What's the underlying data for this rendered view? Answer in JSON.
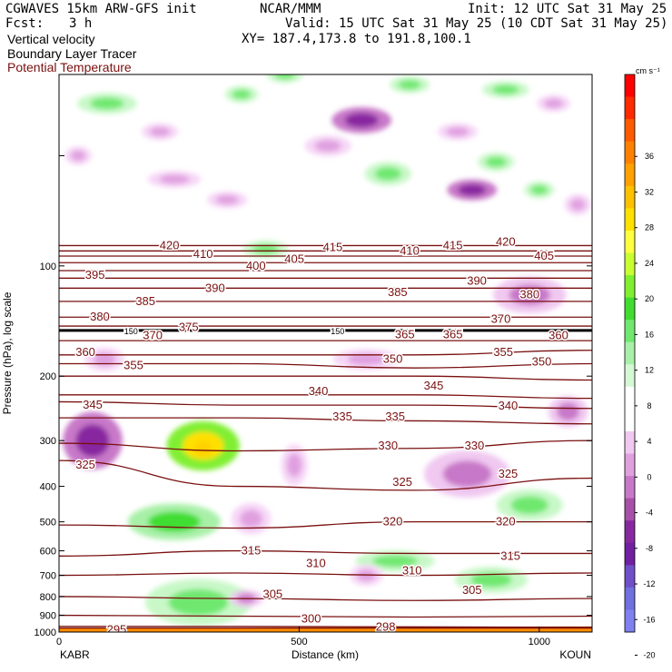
{
  "header": {
    "title_left": "CGWAVES 15km ARW-GFS init",
    "org": "NCAR/MMM",
    "init": "Init: 12 UTC Sat 31 May 25",
    "fcst_label": "Fcst:",
    "fcst_value": "3 h",
    "valid": "Valid: 15 UTC Sat 31 May 25 (10 CDT Sat 31 May 25)",
    "field1": "Vertical velocity",
    "field2": "Boundary Layer Tracer",
    "field3": "Potential Temperature",
    "xy": "XY= 187.4,173.8 to 191.8,100.1"
  },
  "colors": {
    "theta_contour": "#7a1010",
    "tropopause": "#000000",
    "field3_text": "#7a1010",
    "boundary_layer": "#ff8c00"
  },
  "chart_data": {
    "type": "heatmap",
    "xlabel": "Distance (km)",
    "ylabel": "Pressure (hPa), log scale",
    "x_ticks": [
      0,
      500,
      1000
    ],
    "x_range": [
      0,
      1110
    ],
    "x_endpoints": {
      "left": "KABR",
      "right": "KOUN"
    },
    "y_scale": "log",
    "y_range": [
      1000,
      30
    ],
    "y_ticks": [
      100,
      200,
      300,
      400,
      500,
      600,
      700,
      800,
      900,
      1000
    ],
    "colorbar": {
      "units": "cm s⁻¹",
      "ticks": [
        36,
        32,
        28,
        24,
        20,
        16,
        12,
        8,
        4,
        0,
        -4,
        -8,
        -12,
        -16,
        -20
      ],
      "colors": [
        "#ff0000",
        "#ff2a00",
        "#ff5a00",
        "#ff8000",
        "#ffa000",
        "#ffc000",
        "#ffe000",
        "#ffff40",
        "#c8ff30",
        "#80ef30",
        "#40dd30",
        "#70e870",
        "#a8f0a8",
        "#d4f8d4",
        "#ffffff",
        "#ffffff",
        "#f0c8f0",
        "#e0a0e0",
        "#c878c8",
        "#a850a8",
        "#8828a0",
        "#7020a0",
        "#7050c8",
        "#7070e0",
        "#8080f0"
      ]
    },
    "theta_contours": [
      {
        "value": 295,
        "p": [
          975,
          975,
          975,
          975
        ]
      },
      {
        "value": 298,
        "p": [
          965,
          965,
          968,
          970
        ]
      },
      {
        "value": 300,
        "p": [
          900,
          905,
          910,
          905
        ]
      },
      {
        "value": 305,
        "p": [
          800,
          810,
          820,
          810
        ]
      },
      {
        "value": 310,
        "p": [
          700,
          690,
          700,
          690
        ]
      },
      {
        "value": 315,
        "p": [
          620,
          600,
          610,
          610
        ]
      },
      {
        "value": 320,
        "p": [
          510,
          520,
          500,
          500
        ]
      },
      {
        "value": 325,
        "p": [
          340,
          400,
          410,
          380
        ]
      },
      {
        "value": 330,
        "p": [
          305,
          320,
          315,
          300
        ]
      },
      {
        "value": 335,
        "p": [
          260,
          260,
          265,
          270
        ]
      },
      {
        "value": 340,
        "p": [
          235,
          240,
          240,
          245
        ]
      },
      {
        "value": 345,
        "p": [
          225,
          225,
          225,
          230
        ]
      },
      {
        "value": 350,
        "p": [
          200,
          200,
          200,
          205
        ]
      },
      {
        "value": 355,
        "p": [
          185,
          185,
          190,
          185
        ]
      },
      {
        "value": 360,
        "p": [
          175,
          175,
          175,
          170
        ]
      },
      {
        "value": 365,
        "p": [
          160,
          160,
          160,
          160
        ]
      },
      {
        "value": 370,
        "p": [
          150,
          150,
          150,
          150
        ]
      },
      {
        "value": 375,
        "p": [
          146,
          146,
          146,
          146
        ]
      },
      {
        "value": 380,
        "p": [
          138,
          138,
          138,
          138
        ]
      },
      {
        "value": 385,
        "p": [
          125,
          125,
          125,
          125
        ]
      },
      {
        "value": 390,
        "p": [
          115,
          115,
          115,
          115
        ]
      },
      {
        "value": 395,
        "p": [
          108,
          108,
          108,
          108
        ]
      },
      {
        "value": 400,
        "p": [
          103,
          103,
          103,
          103
        ]
      },
      {
        "value": 405,
        "p": [
          98,
          98,
          98,
          98
        ]
      },
      {
        "value": 410,
        "p": [
          94,
          94,
          94,
          94
        ]
      },
      {
        "value": 415,
        "p": [
          91,
          91,
          91,
          91
        ]
      },
      {
        "value": 420,
        "p": [
          88,
          88,
          88,
          88
        ]
      }
    ],
    "contour_labels": [
      {
        "text": "420",
        "x": 230,
        "p": 88
      },
      {
        "text": "410",
        "x": 300,
        "p": 93
      },
      {
        "text": "400",
        "x": 410,
        "p": 100
      },
      {
        "text": "405",
        "x": 490,
        "p": 96
      },
      {
        "text": "415",
        "x": 570,
        "p": 89
      },
      {
        "text": "410",
        "x": 730,
        "p": 91
      },
      {
        "text": "415",
        "x": 820,
        "p": 88
      },
      {
        "text": "420",
        "x": 930,
        "p": 86
      },
      {
        "text": "405",
        "x": 1010,
        "p": 94
      },
      {
        "text": "395",
        "x": 75,
        "p": 106
      },
      {
        "text": "385",
        "x": 180,
        "p": 125
      },
      {
        "text": "390",
        "x": 325,
        "p": 115
      },
      {
        "text": "385",
        "x": 705,
        "p": 118
      },
      {
        "text": "390",
        "x": 870,
        "p": 110
      },
      {
        "text": "380",
        "x": 980,
        "p": 120
      },
      {
        "text": "380",
        "x": 85,
        "p": 138
      },
      {
        "text": "370",
        "x": 195,
        "p": 155
      },
      {
        "text": "375",
        "x": 270,
        "p": 147
      },
      {
        "text": "365",
        "x": 720,
        "p": 154
      },
      {
        "text": "365",
        "x": 820,
        "p": 154
      },
      {
        "text": "370",
        "x": 920,
        "p": 140
      },
      {
        "text": "360",
        "x": 1040,
        "p": 155
      },
      {
        "text": "360",
        "x": 55,
        "p": 172
      },
      {
        "text": "355",
        "x": 155,
        "p": 187
      },
      {
        "text": "350",
        "x": 695,
        "p": 180
      },
      {
        "text": "355",
        "x": 925,
        "p": 172
      },
      {
        "text": "350",
        "x": 1005,
        "p": 183
      },
      {
        "text": "345",
        "x": 70,
        "p": 240
      },
      {
        "text": "340",
        "x": 540,
        "p": 220
      },
      {
        "text": "345",
        "x": 780,
        "p": 213
      },
      {
        "text": "340",
        "x": 935,
        "p": 241
      },
      {
        "text": "335",
        "x": 590,
        "p": 258
      },
      {
        "text": "335",
        "x": 700,
        "p": 258
      },
      {
        "text": "330",
        "x": 685,
        "p": 310
      },
      {
        "text": "330",
        "x": 865,
        "p": 310
      },
      {
        "text": "325",
        "x": 55,
        "p": 350
      },
      {
        "text": "325",
        "x": 715,
        "p": 390
      },
      {
        "text": "325",
        "x": 935,
        "p": 370
      },
      {
        "text": "320",
        "x": 695,
        "p": 500
      },
      {
        "text": "320",
        "x": 930,
        "p": 500
      },
      {
        "text": "315",
        "x": 400,
        "p": 600
      },
      {
        "text": "315",
        "x": 940,
        "p": 620
      },
      {
        "text": "310",
        "x": 535,
        "p": 650
      },
      {
        "text": "310",
        "x": 735,
        "p": 680
      },
      {
        "text": "305",
        "x": 445,
        "p": 790
      },
      {
        "text": "305",
        "x": 860,
        "p": 770
      },
      {
        "text": "300",
        "x": 525,
        "p": 920
      },
      {
        "text": "298",
        "x": 680,
        "p": 970
      },
      {
        "text": "295",
        "x": 120,
        "p": 985
      },
      {
        "text": "150",
        "x": 150,
        "p": 150
      },
      {
        "text": "150",
        "x": 580,
        "p": 150
      }
    ],
    "tropopause_p": 150,
    "blobs": [
      {
        "x": 300,
        "p": 310,
        "w": 110,
        "h": 95,
        "val": 30
      },
      {
        "x": 240,
        "p": 500,
        "w": 140,
        "h": 70,
        "val": 8
      },
      {
        "x": 290,
        "p": 830,
        "w": 160,
        "h": 90,
        "val": 5
      },
      {
        "x": 70,
        "p": 300,
        "w": 90,
        "h": 110,
        "val": -12
      },
      {
        "x": 95,
        "p": 180,
        "w": 60,
        "h": 45,
        "val": -5
      },
      {
        "x": 490,
        "p": 350,
        "w": 40,
        "h": 80,
        "val": -5
      },
      {
        "x": 640,
        "p": 180,
        "w": 100,
        "h": 40,
        "val": -5
      },
      {
        "x": 850,
        "p": 370,
        "w": 130,
        "h": 90,
        "val": -7
      },
      {
        "x": 980,
        "p": 120,
        "w": 110,
        "h": 70,
        "val": -6
      },
      {
        "x": 1060,
        "p": 250,
        "w": 60,
        "h": 60,
        "val": -6
      },
      {
        "x": 630,
        "p": 40,
        "w": 90,
        "h": 50,
        "val": -14
      },
      {
        "x": 860,
        "p": 62,
        "w": 75,
        "h": 40,
        "val": -14
      },
      {
        "x": 560,
        "p": 47,
        "w": 70,
        "h": 40,
        "val": -4
      },
      {
        "x": 910,
        "p": 52,
        "w": 55,
        "h": 35,
        "val": 6
      },
      {
        "x": 685,
        "p": 56,
        "w": 70,
        "h": 45,
        "val": 6
      },
      {
        "x": 100,
        "p": 36,
        "w": 90,
        "h": 40,
        "val": 6
      },
      {
        "x": 380,
        "p": 34,
        "w": 50,
        "h": 30,
        "val": 5
      },
      {
        "x": 730,
        "p": 32,
        "w": 60,
        "h": 28,
        "val": 6
      },
      {
        "x": 930,
        "p": 33,
        "w": 70,
        "h": 25,
        "val": 5
      },
      {
        "x": 240,
        "p": 58,
        "w": 80,
        "h": 30,
        "val": -4
      },
      {
        "x": 210,
        "p": 43,
        "w": 55,
        "h": 28,
        "val": -5
      },
      {
        "x": 1030,
        "p": 36,
        "w": 50,
        "h": 30,
        "val": -5
      },
      {
        "x": 830,
        "p": 43,
        "w": 60,
        "h": 30,
        "val": -4
      },
      {
        "x": 430,
        "p": 90,
        "w": 70,
        "h": 30,
        "val": 5
      },
      {
        "x": 350,
        "p": 66,
        "w": 60,
        "h": 30,
        "val": -4
      },
      {
        "x": 470,
        "p": 30,
        "w": 55,
        "h": 25,
        "val": 6
      },
      {
        "x": 40,
        "p": 50,
        "w": 40,
        "h": 35,
        "val": -4
      },
      {
        "x": 1080,
        "p": 68,
        "w": 40,
        "h": 40,
        "val": -5
      },
      {
        "x": 1000,
        "p": 62,
        "w": 45,
        "h": 30,
        "val": 5
      },
      {
        "x": 700,
        "p": 640,
        "w": 120,
        "h": 40,
        "val": 4
      },
      {
        "x": 900,
        "p": 720,
        "w": 110,
        "h": 50,
        "val": 4
      },
      {
        "x": 980,
        "p": 450,
        "w": 100,
        "h": 60,
        "val": 4
      },
      {
        "x": 400,
        "p": 490,
        "w": 60,
        "h": 60,
        "val": -4
      },
      {
        "x": 640,
        "p": 700,
        "w": 50,
        "h": 40,
        "val": -4
      },
      {
        "x": 390,
        "p": 810,
        "w": 50,
        "h": 30,
        "val": -6
      }
    ]
  }
}
